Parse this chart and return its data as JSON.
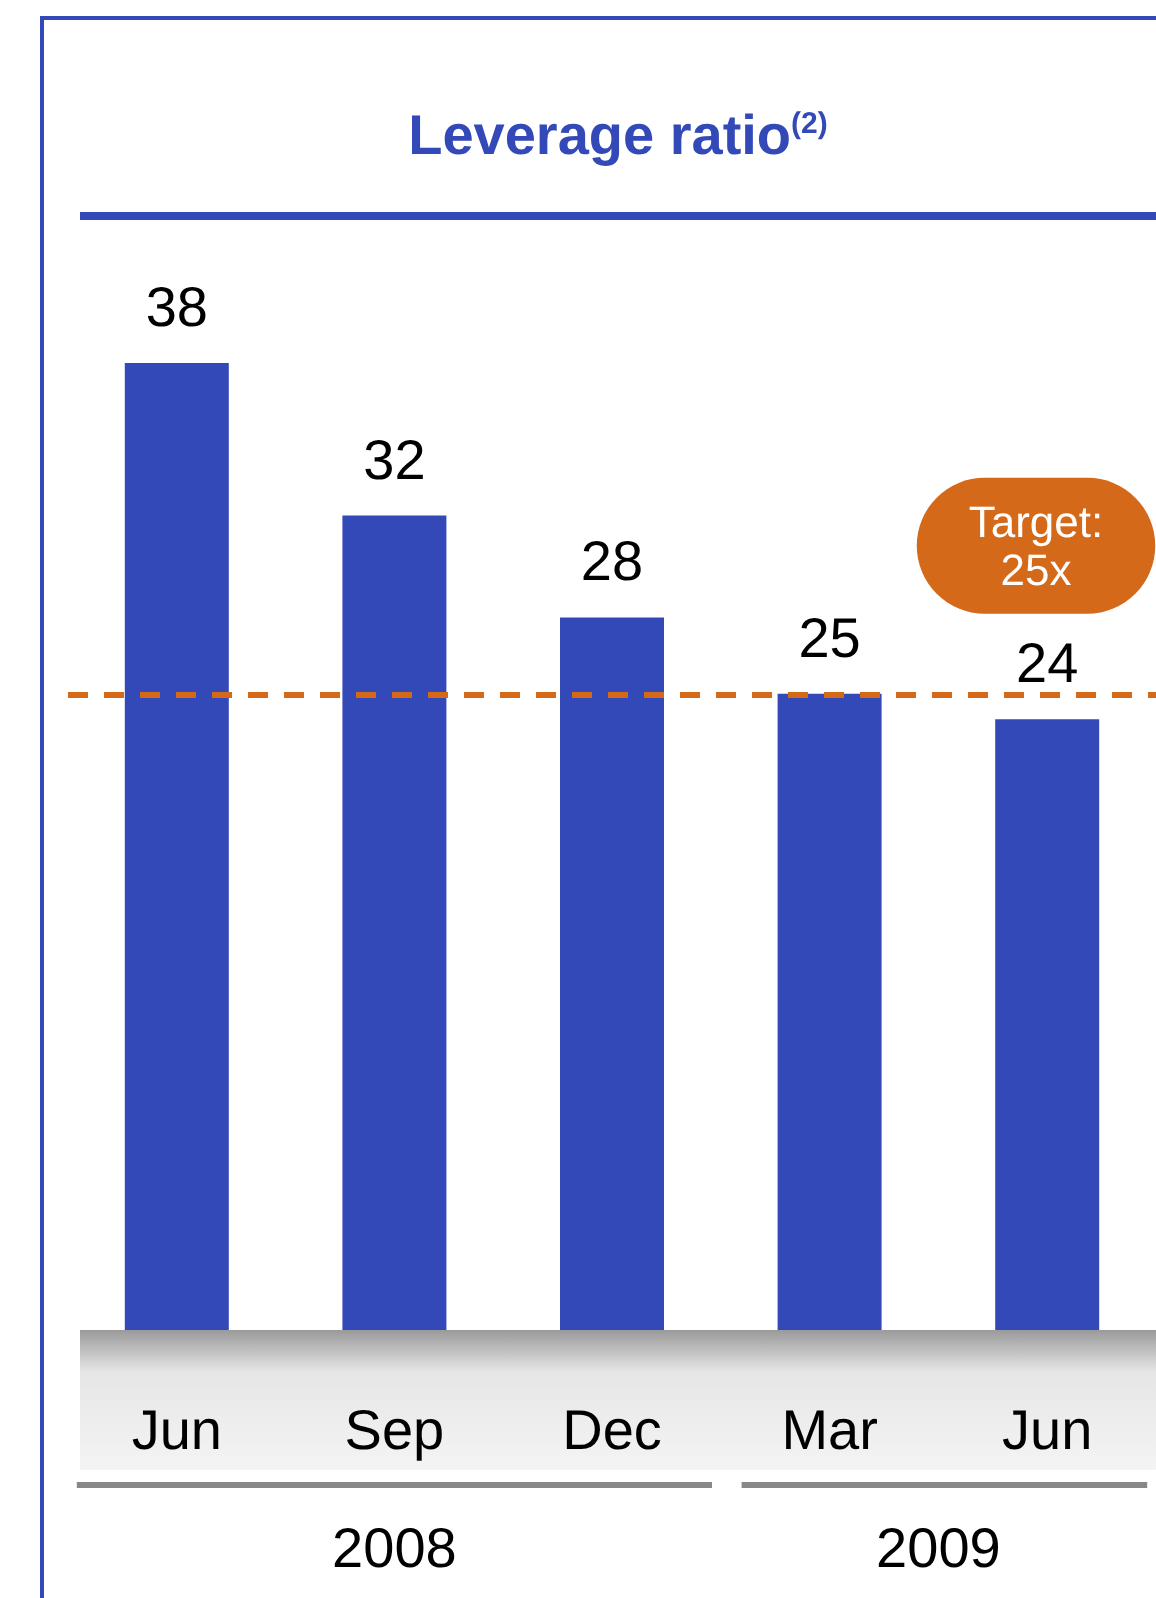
{
  "chart_data": {
    "type": "bar",
    "title": "Leverage ratio$^{(2)}$",
    "categories": [
      "Jun",
      "Sep",
      "Dec",
      "Mar",
      "Jun"
    ],
    "values": [
      38,
      32,
      28,
      25,
      24
    ],
    "color": "#3349b8",
    "data_labels": true,
    "ref_lines": [
      {
        "axis": "y",
        "value": 25,
        "label": "Target:\n25x",
        "color": "#d4691a",
        "line_style": "dashed"
      }
    ],
    "annotations": [
      "2008",
      "2009"
    ]
  }
}
